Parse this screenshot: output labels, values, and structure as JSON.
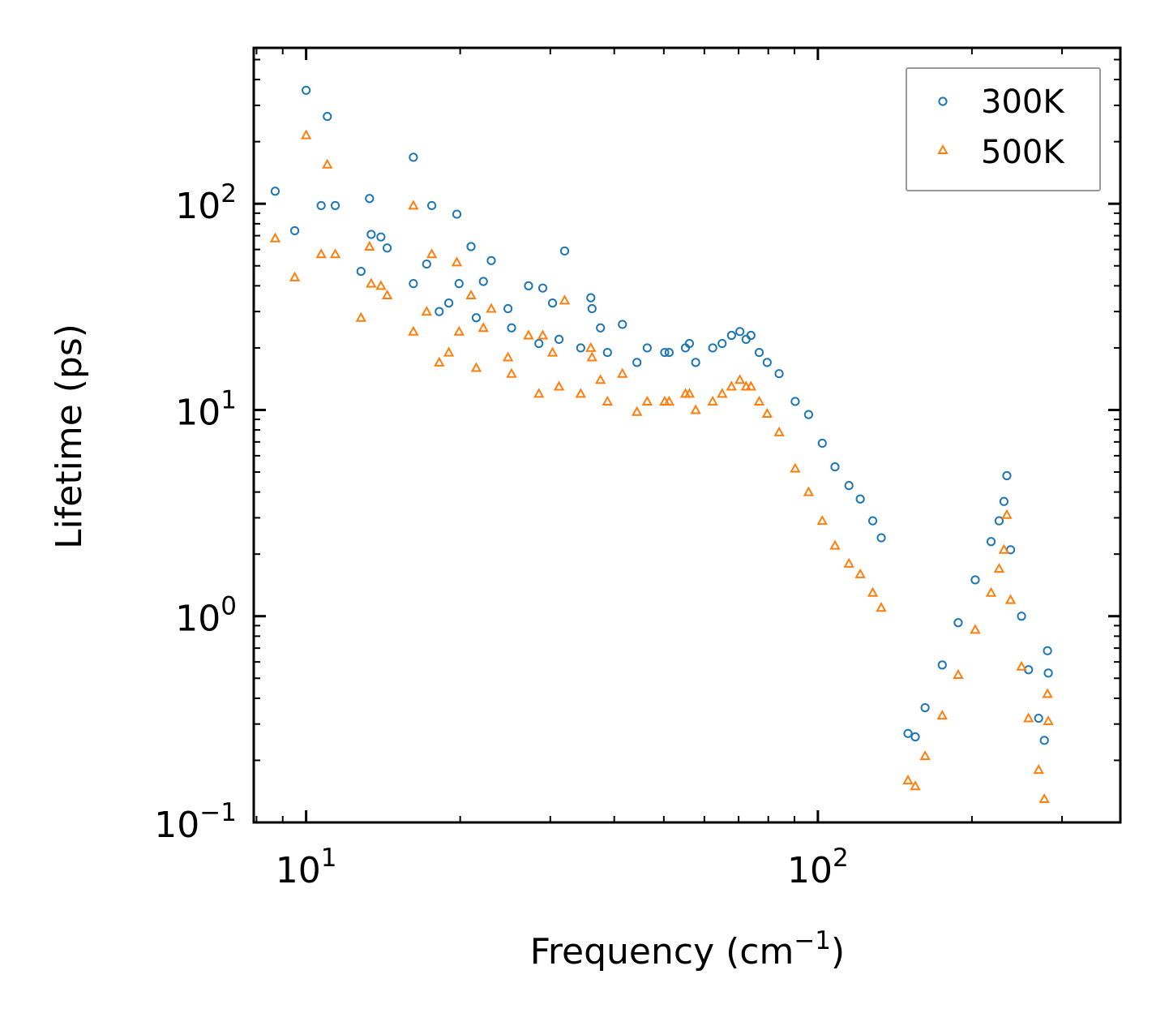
{
  "chart_data": {
    "type": "scatter",
    "title": "",
    "xlabel": "Frequency (cm",
    "xlabel_sup": "−1",
    "xlabel_suffix": ")",
    "ylabel": "Lifetime (ps)",
    "xscale": "log",
    "yscale": "log",
    "xlim": [
      7.9,
      390
    ],
    "ylim": [
      0.1,
      570
    ],
    "x_ticks": [
      {
        "value": 10,
        "base": "10",
        "exp": "1"
      },
      {
        "value": 100,
        "base": "10",
        "exp": "2"
      }
    ],
    "y_ticks": [
      {
        "value": 0.1,
        "base": "10",
        "exp": "−1"
      },
      {
        "value": 1,
        "base": "10",
        "exp": "0"
      },
      {
        "value": 10,
        "base": "10",
        "exp": "1"
      },
      {
        "value": 100,
        "base": "10",
        "exp": "2"
      }
    ],
    "legend": {
      "position": "top-right",
      "entries": [
        "300K",
        "500K"
      ]
    },
    "series": [
      {
        "name": "300K",
        "marker": "circle",
        "color": "#1f77b4",
        "points": [
          [
            8.7,
            115
          ],
          [
            9.5,
            74
          ],
          [
            10.0,
            355
          ],
          [
            10.7,
            98
          ],
          [
            11.0,
            265
          ],
          [
            11.4,
            98
          ],
          [
            12.8,
            47
          ],
          [
            13.3,
            106
          ],
          [
            13.4,
            71
          ],
          [
            14.0,
            69
          ],
          [
            14.4,
            61
          ],
          [
            16.2,
            168
          ],
          [
            16.2,
            41
          ],
          [
            17.2,
            51
          ],
          [
            17.6,
            98
          ],
          [
            18.2,
            30
          ],
          [
            19.0,
            33
          ],
          [
            19.7,
            89
          ],
          [
            19.9,
            41
          ],
          [
            21.0,
            62
          ],
          [
            21.5,
            28
          ],
          [
            22.2,
            42
          ],
          [
            23.0,
            53
          ],
          [
            24.8,
            31
          ],
          [
            25.2,
            25
          ],
          [
            27.2,
            40
          ],
          [
            28.5,
            21
          ],
          [
            29.0,
            39
          ],
          [
            30.3,
            33
          ],
          [
            31.2,
            22
          ],
          [
            32.0,
            59
          ],
          [
            34.4,
            20
          ],
          [
            36.0,
            35
          ],
          [
            36.2,
            31
          ],
          [
            37.6,
            25
          ],
          [
            38.8,
            19
          ],
          [
            41.5,
            26
          ],
          [
            44.3,
            17
          ],
          [
            46.4,
            20
          ],
          [
            50.2,
            19
          ],
          [
            51.2,
            19
          ],
          [
            55.1,
            20
          ],
          [
            56.1,
            21
          ],
          [
            57.7,
            17
          ],
          [
            62.3,
            20
          ],
          [
            65.0,
            21
          ],
          [
            67.8,
            23
          ],
          [
            70.4,
            24
          ],
          [
            72.4,
            22
          ],
          [
            74.0,
            23
          ],
          [
            76.8,
            19
          ],
          [
            79.6,
            17
          ],
          [
            84.0,
            15
          ],
          [
            90.3,
            11
          ],
          [
            95.9,
            9.5
          ],
          [
            102.0,
            6.9
          ],
          [
            108.0,
            5.3
          ],
          [
            115.0,
            4.3
          ],
          [
            121.0,
            3.7
          ],
          [
            128.0,
            2.9
          ],
          [
            133.0,
            2.4
          ],
          [
            150.0,
            0.27
          ],
          [
            155.0,
            0.26
          ],
          [
            162.0,
            0.36
          ],
          [
            175.0,
            0.58
          ],
          [
            188.0,
            0.93
          ],
          [
            203.0,
            1.5
          ],
          [
            218.0,
            2.3
          ],
          [
            226.0,
            2.9
          ],
          [
            231.0,
            3.6
          ],
          [
            234.0,
            4.8
          ],
          [
            238.0,
            2.1
          ],
          [
            250.0,
            1.0
          ],
          [
            258.0,
            0.55
          ],
          [
            270.0,
            0.32
          ],
          [
            277.0,
            0.25
          ],
          [
            281.0,
            0.68
          ],
          [
            282.0,
            0.53
          ]
        ]
      },
      {
        "name": "500K",
        "marker": "triangle",
        "color": "#ff7f0e",
        "points": [
          [
            8.7,
            68
          ],
          [
            9.5,
            44
          ],
          [
            10.0,
            215
          ],
          [
            10.7,
            57
          ],
          [
            11.0,
            155
          ],
          [
            11.4,
            57
          ],
          [
            12.8,
            28
          ],
          [
            13.3,
            62
          ],
          [
            13.4,
            41
          ],
          [
            14.0,
            40
          ],
          [
            14.4,
            36
          ],
          [
            16.2,
            98
          ],
          [
            16.2,
            24
          ],
          [
            17.2,
            30
          ],
          [
            17.6,
            57
          ],
          [
            18.2,
            17
          ],
          [
            19.0,
            19
          ],
          [
            19.7,
            52
          ],
          [
            19.9,
            24
          ],
          [
            21.0,
            36
          ],
          [
            21.5,
            16
          ],
          [
            22.2,
            25
          ],
          [
            23.0,
            31
          ],
          [
            24.8,
            18
          ],
          [
            25.2,
            15
          ],
          [
            27.2,
            23
          ],
          [
            28.5,
            12
          ],
          [
            29.0,
            23
          ],
          [
            30.3,
            19
          ],
          [
            31.2,
            13
          ],
          [
            32.0,
            34
          ],
          [
            34.4,
            12
          ],
          [
            36.0,
            20
          ],
          [
            36.2,
            18
          ],
          [
            37.6,
            14
          ],
          [
            38.8,
            11
          ],
          [
            41.5,
            15
          ],
          [
            44.3,
            9.8
          ],
          [
            46.4,
            11
          ],
          [
            50.2,
            11
          ],
          [
            51.2,
            11
          ],
          [
            55.1,
            12
          ],
          [
            56.1,
            12
          ],
          [
            57.7,
            10
          ],
          [
            62.3,
            11
          ],
          [
            65.0,
            12
          ],
          [
            67.8,
            13
          ],
          [
            70.4,
            14
          ],
          [
            72.4,
            13
          ],
          [
            74.0,
            13
          ],
          [
            76.8,
            11
          ],
          [
            79.6,
            9.6
          ],
          [
            84.0,
            7.8
          ],
          [
            90.3,
            5.2
          ],
          [
            95.9,
            4.0
          ],
          [
            102.0,
            2.9
          ],
          [
            108.0,
            2.2
          ],
          [
            115.0,
            1.8
          ],
          [
            121.0,
            1.6
          ],
          [
            128.0,
            1.3
          ],
          [
            133.0,
            1.1
          ],
          [
            150.0,
            0.16
          ],
          [
            155.0,
            0.15
          ],
          [
            162.0,
            0.21
          ],
          [
            175.0,
            0.33
          ],
          [
            188.0,
            0.52
          ],
          [
            203.0,
            0.86
          ],
          [
            218.0,
            1.3
          ],
          [
            226.0,
            1.7
          ],
          [
            231.0,
            2.1
          ],
          [
            234.0,
            3.1
          ],
          [
            238.0,
            1.2
          ],
          [
            250.0,
            0.57
          ],
          [
            258.0,
            0.32
          ],
          [
            270.0,
            0.18
          ],
          [
            277.0,
            0.13
          ],
          [
            281.0,
            0.42
          ],
          [
            282.0,
            0.31
          ]
        ]
      }
    ]
  }
}
